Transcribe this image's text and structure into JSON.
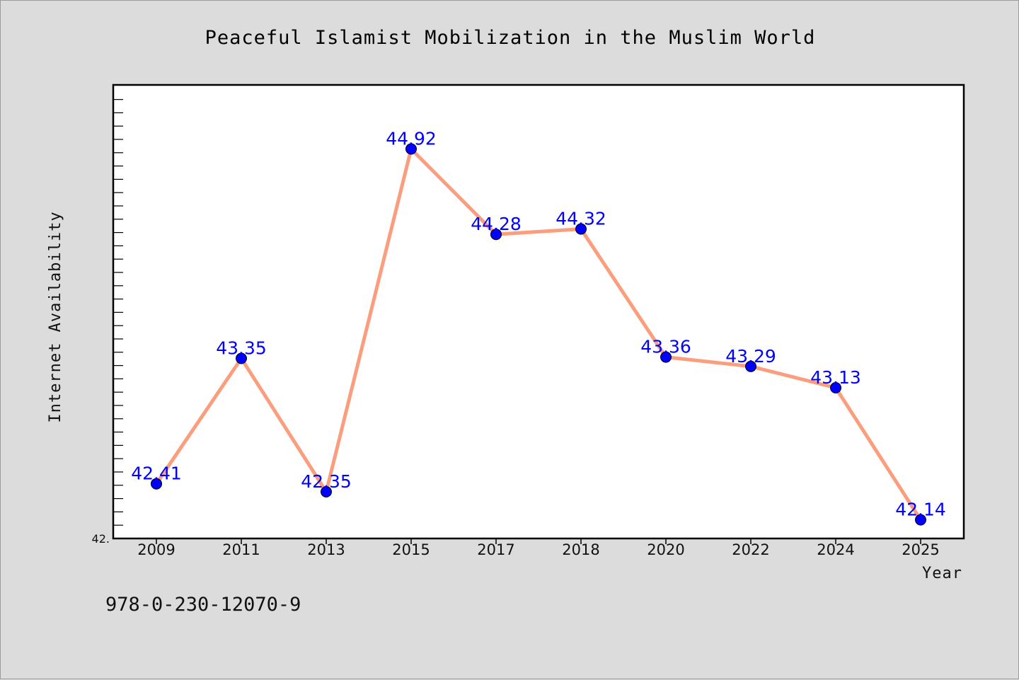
{
  "chart_data": {
    "type": "line",
    "title": "Peaceful Islamist Mobilization in the Muslim World",
    "xlabel": "Year",
    "ylabel": "Internet Availability",
    "categories": [
      "2009",
      "2011",
      "2013",
      "2015",
      "2017",
      "2018",
      "2020",
      "2022",
      "2024",
      "2025"
    ],
    "series": [
      {
        "values": [
          42.41,
          43.35,
          42.35,
          44.92,
          44.28,
          44.32,
          43.36,
          43.29,
          43.13,
          42.14
        ],
        "data_labels": [
          "42.41",
          "43.35",
          "42.35",
          "44.92",
          "44.28",
          "44.32",
          "43.36",
          "43.29",
          "43.13",
          "42.14"
        ],
        "line_color": "#fa9e7d",
        "marker_color": "#0000ff"
      }
    ],
    "ylim": [
      42.0,
      45.4
    ],
    "y_tick_label": "42.",
    "grid": false,
    "legend": "none"
  },
  "footnote": "978-0-230-12070-9",
  "colors": {
    "background": "#dcdcdc",
    "plot_background": "#ffffff",
    "line": "#fa9e7d",
    "marker": "#0000ff",
    "data_label": "#0000ff"
  }
}
